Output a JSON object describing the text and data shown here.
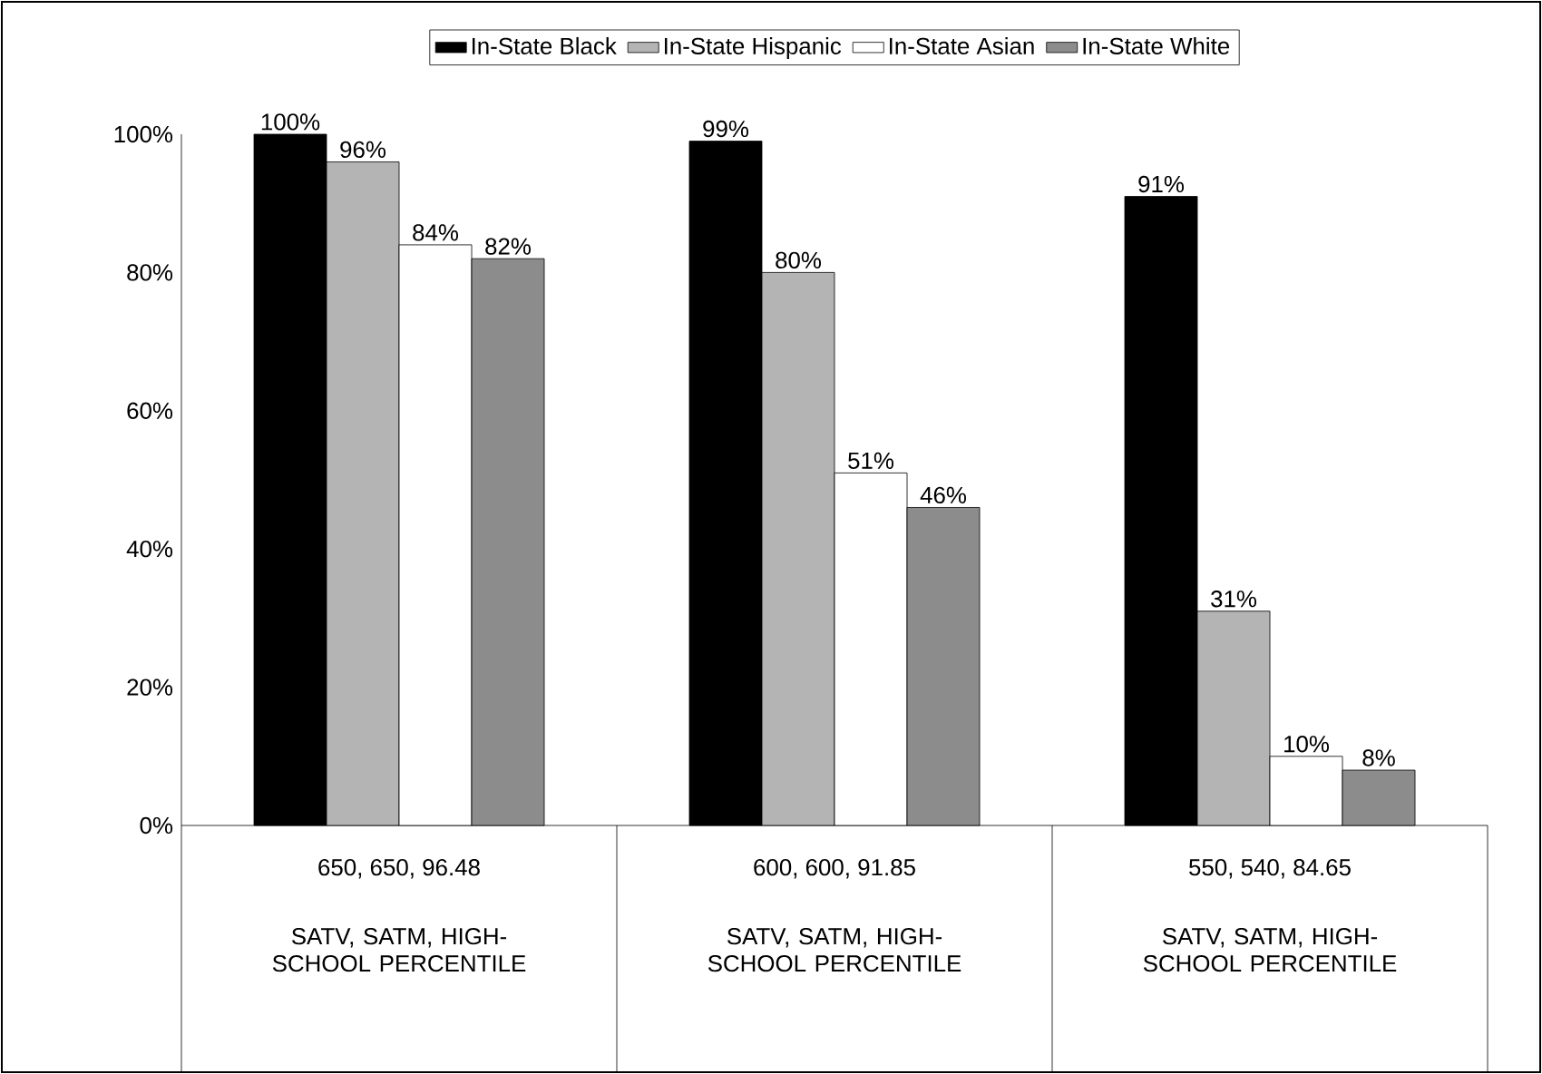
{
  "chart_data": {
    "type": "bar",
    "categories": [
      "650, 650, 96.48",
      "600, 600, 91.85",
      "550, 540, 84.65"
    ],
    "series": [
      {
        "name": "In-State Black",
        "color": "#000000",
        "values": [
          100,
          99,
          91
        ],
        "value_labels": [
          "100%",
          "99%",
          "91%"
        ]
      },
      {
        "name": "In-State Hispanic",
        "color": "#b4b4b4",
        "values": [
          96,
          80,
          31
        ],
        "value_labels": [
          "96%",
          "80%",
          "31%"
        ]
      },
      {
        "name": "In-State Asian",
        "color": "#ffffff",
        "values": [
          84,
          51,
          10
        ],
        "value_labels": [
          "84%",
          "51%",
          "10%"
        ]
      },
      {
        "name": "In-State White",
        "color": "#8c8c8c",
        "values": [
          82,
          46,
          8
        ],
        "value_labels": [
          "82%",
          "46%",
          "8%"
        ]
      }
    ],
    "ylim": [
      0,
      100
    ],
    "yticks": [
      {
        "value": 0,
        "label": "0%"
      },
      {
        "value": 20,
        "label": "20%"
      },
      {
        "value": 40,
        "label": "40%"
      },
      {
        "value": 60,
        "label": "60%"
      },
      {
        "value": 80,
        "label": "80%"
      },
      {
        "value": 100,
        "label": "100%"
      }
    ],
    "annotations": [
      "SATV, SATM, HIGH-SCHOOL PERCENTILE",
      "SATV, SATM, HIGH-SCHOOL PERCENTILE",
      "SATV, SATM, HIGH-SCHOOL PERCENTILE"
    ],
    "legend": "top",
    "grid": false
  }
}
